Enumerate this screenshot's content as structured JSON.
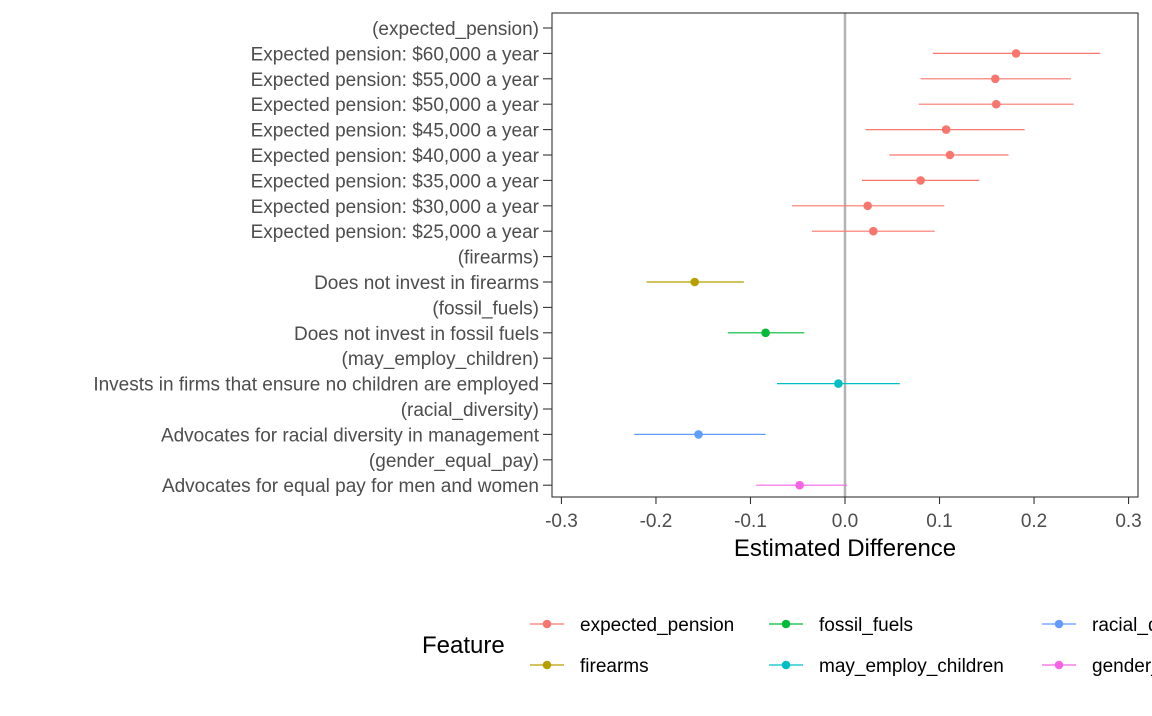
{
  "chart_data": {
    "type": "scatter",
    "subtype": "coefficient-plot",
    "xlabel": "Estimated Difference",
    "xlim": [
      -0.31,
      0.31
    ],
    "xticks": [
      -0.3,
      -0.2,
      -0.1,
      0.0,
      0.1,
      0.2,
      0.3
    ],
    "xtick_labels": [
      "-0.3",
      "-0.2",
      "-0.1",
      "0.0",
      "0.1",
      "0.2",
      "0.3"
    ],
    "reference_line": 0,
    "grid": false,
    "legend": {
      "title": "Feature",
      "placement": "bottom",
      "entries": [
        {
          "name": "expected_pension",
          "color": "#F8766D"
        },
        {
          "name": "firearms",
          "color": "#B79F00"
        },
        {
          "name": "fossil_fuels",
          "color": "#00BA38"
        },
        {
          "name": "may_employ_children",
          "color": "#00BFC4"
        },
        {
          "name": "racial_diversity",
          "color": "#619CFF"
        },
        {
          "name": "gender_equal_pay",
          "color": "#F564E3"
        }
      ]
    },
    "rows": [
      {
        "label": "(expected_pension)",
        "feature": null,
        "estimate": null,
        "lower": null,
        "upper": null
      },
      {
        "label": "Expected pension: $60,000 a year",
        "feature": "expected_pension",
        "estimate": 0.181,
        "lower": 0.093,
        "upper": 0.27
      },
      {
        "label": "Expected pension: $55,000 a year",
        "feature": "expected_pension",
        "estimate": 0.159,
        "lower": 0.08,
        "upper": 0.239
      },
      {
        "label": "Expected pension: $50,000 a year",
        "feature": "expected_pension",
        "estimate": 0.16,
        "lower": 0.078,
        "upper": 0.242
      },
      {
        "label": "Expected pension: $45,000 a year",
        "feature": "expected_pension",
        "estimate": 0.107,
        "lower": 0.022,
        "upper": 0.19
      },
      {
        "label": "Expected pension: $40,000 a year",
        "feature": "expected_pension",
        "estimate": 0.111,
        "lower": 0.047,
        "upper": 0.173
      },
      {
        "label": "Expected pension: $35,000 a year",
        "feature": "expected_pension",
        "estimate": 0.08,
        "lower": 0.018,
        "upper": 0.142
      },
      {
        "label": "Expected pension: $30,000 a year",
        "feature": "expected_pension",
        "estimate": 0.024,
        "lower": -0.056,
        "upper": 0.105
      },
      {
        "label": "Expected pension: $25,000 a year",
        "feature": "expected_pension",
        "estimate": 0.03,
        "lower": -0.035,
        "upper": 0.095
      },
      {
        "label": "(firearms)",
        "feature": null,
        "estimate": null,
        "lower": null,
        "upper": null
      },
      {
        "label": "Does not invest in firearms",
        "feature": "firearms",
        "estimate": -0.159,
        "lower": -0.21,
        "upper": -0.107
      },
      {
        "label": "(fossil_fuels)",
        "feature": null,
        "estimate": null,
        "lower": null,
        "upper": null
      },
      {
        "label": "Does not invest in fossil fuels",
        "feature": "fossil_fuels",
        "estimate": -0.084,
        "lower": -0.124,
        "upper": -0.043
      },
      {
        "label": "(may_employ_children)",
        "feature": null,
        "estimate": null,
        "lower": null,
        "upper": null
      },
      {
        "label": "Invests in firms that ensure no children are employed",
        "feature": "may_employ_children",
        "estimate": -0.007,
        "lower": -0.072,
        "upper": 0.058
      },
      {
        "label": "(racial_diversity)",
        "feature": null,
        "estimate": null,
        "lower": null,
        "upper": null
      },
      {
        "label": "Advocates for racial diversity in management",
        "feature": "racial_diversity",
        "estimate": -0.155,
        "lower": -0.223,
        "upper": -0.084
      },
      {
        "label": "(gender_equal_pay)",
        "feature": null,
        "estimate": null,
        "lower": null,
        "upper": null
      },
      {
        "label": "Advocates for equal pay for men and women",
        "feature": "gender_equal_pay",
        "estimate": -0.048,
        "lower": -0.094,
        "upper": 0.002
      }
    ]
  }
}
